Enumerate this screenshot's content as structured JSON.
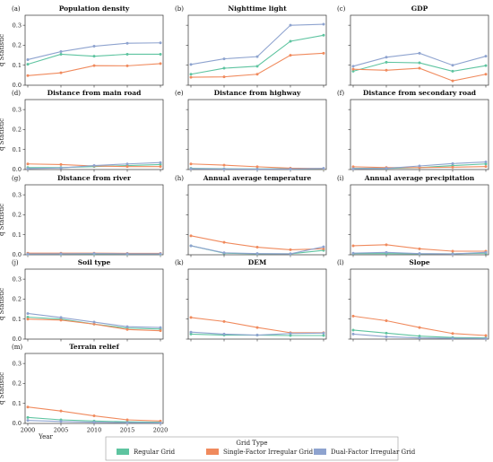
{
  "chart_data": {
    "type": "line",
    "x": [
      2000,
      2005,
      2010,
      2015,
      2020
    ],
    "xlabel": "Year",
    "ylabel": "q Statistic",
    "ylim": [
      0,
      0.35
    ],
    "yticks": [
      "0.0",
      "0.1",
      "0.2",
      "0.3"
    ],
    "legend": {
      "title": "Grid Type",
      "placement": "bottom-center",
      "entries": [
        {
          "name": "Regular Grid",
          "color": "#5ec4a0"
        },
        {
          "name": "Single-Factor Irregular Grid",
          "color": "#f08a5d"
        },
        {
          "name": "Dual-Factor Irregular Grid",
          "color": "#8ea3cf"
        }
      ]
    },
    "panels": [
      {
        "label": "(a)",
        "title": "Population density",
        "series": [
          [
            0.105,
            0.155,
            0.145,
            0.155,
            0.155
          ],
          [
            0.048,
            0.062,
            0.098,
            0.097,
            0.108
          ],
          [
            0.128,
            0.168,
            0.195,
            0.21,
            0.212
          ]
        ]
      },
      {
        "label": "(b)",
        "title": "Nighttime light",
        "series": [
          [
            0.055,
            0.085,
            0.095,
            0.22,
            0.25
          ],
          [
            0.04,
            0.042,
            0.055,
            0.15,
            0.16
          ],
          [
            0.104,
            0.132,
            0.143,
            0.3,
            0.305
          ]
        ]
      },
      {
        "label": "(c)",
        "title": "GDP",
        "series": [
          [
            0.07,
            0.115,
            0.112,
            0.07,
            0.098
          ],
          [
            0.08,
            0.075,
            0.085,
            0.022,
            0.055
          ],
          [
            0.095,
            0.14,
            0.16,
            0.1,
            0.145
          ]
        ]
      },
      {
        "label": "(d)",
        "title": "Distance from main road",
        "series": [
          [
            0.01,
            0.01,
            0.015,
            0.02,
            0.025
          ],
          [
            0.028,
            0.025,
            0.018,
            0.015,
            0.015
          ],
          [
            0.005,
            0.008,
            0.02,
            0.028,
            0.035
          ]
        ]
      },
      {
        "label": "(e)",
        "title": "Distance from highway",
        "series": [
          [
            0.006,
            0.004,
            0.003,
            0.004,
            0.004
          ],
          [
            0.028,
            0.022,
            0.014,
            0.007,
            0.005
          ],
          [
            0.004,
            0.003,
            0.002,
            0.003,
            0.006
          ]
        ]
      },
      {
        "label": "(f)",
        "title": "Distance from secondary road",
        "series": [
          [
            0.006,
            0.006,
            0.01,
            0.02,
            0.028
          ],
          [
            0.014,
            0.01,
            0.01,
            0.012,
            0.015
          ],
          [
            0.004,
            0.006,
            0.018,
            0.03,
            0.038
          ]
        ]
      },
      {
        "label": "(g)",
        "title": "Distance from river",
        "series": [
          [
            0.004,
            0.004,
            0.004,
            0.004,
            0.004
          ],
          [
            0.008,
            0.008,
            0.008,
            0.007,
            0.007
          ],
          [
            0.004,
            0.005,
            0.006,
            0.005,
            0.005
          ]
        ]
      },
      {
        "label": "(h)",
        "title": "Annual average temperature",
        "series": [
          [
            0.045,
            0.008,
            0.005,
            0.005,
            0.022
          ],
          [
            0.095,
            0.062,
            0.038,
            0.025,
            0.03
          ],
          [
            0.045,
            0.01,
            0.006,
            0.005,
            0.04
          ]
        ]
      },
      {
        "label": "(i)",
        "title": "Annual average precipitation",
        "series": [
          [
            0.006,
            0.006,
            0.005,
            0.005,
            0.008
          ],
          [
            0.045,
            0.05,
            0.03,
            0.018,
            0.018
          ],
          [
            0.008,
            0.012,
            0.006,
            0.004,
            0.012
          ]
        ]
      },
      {
        "label": "(j)",
        "title": "Soil type",
        "series": [
          [
            0.11,
            0.1,
            0.075,
            0.055,
            0.05
          ],
          [
            0.1,
            0.095,
            0.075,
            0.048,
            0.042
          ],
          [
            0.128,
            0.108,
            0.085,
            0.062,
            0.058
          ]
        ]
      },
      {
        "label": "(k)",
        "title": "DEM",
        "series": [
          [
            0.025,
            0.02,
            0.02,
            0.018,
            0.018
          ],
          [
            0.108,
            0.088,
            0.058,
            0.032,
            0.032
          ],
          [
            0.035,
            0.025,
            0.02,
            0.028,
            0.03
          ]
        ]
      },
      {
        "label": "(l)",
        "title": "Slope",
        "series": [
          [
            0.045,
            0.03,
            0.015,
            0.008,
            0.006
          ],
          [
            0.115,
            0.092,
            0.058,
            0.028,
            0.018
          ],
          [
            0.025,
            0.012,
            0.006,
            0.004,
            0.003
          ]
        ]
      },
      {
        "label": "(m)",
        "title": "Terrain relief",
        "series": [
          [
            0.03,
            0.018,
            0.012,
            0.008,
            0.006
          ],
          [
            0.082,
            0.062,
            0.038,
            0.018,
            0.012
          ],
          [
            0.015,
            0.01,
            0.006,
            0.004,
            0.003
          ]
        ]
      }
    ]
  }
}
